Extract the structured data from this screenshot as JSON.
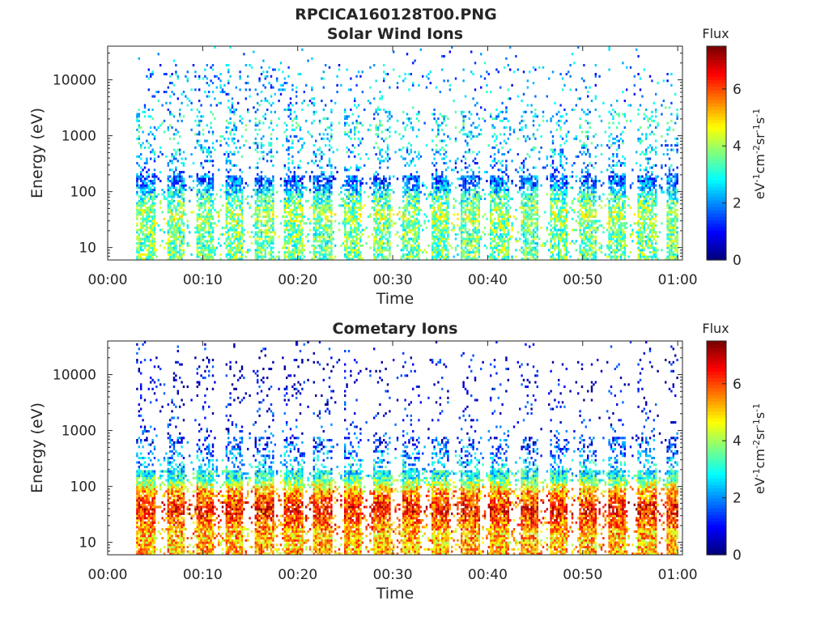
{
  "figure": {
    "filename_title": "RPCICA160128T00.PNG",
    "background": "#ffffff"
  },
  "colormap": [
    "#00007f",
    "#0000ff",
    "#007fff",
    "#00ffff",
    "#7fff7f",
    "#ffff00",
    "#ff7f00",
    "#ff0000",
    "#7f0000"
  ],
  "chart_data": [
    {
      "type": "heatmap",
      "title": "Solar Wind Ions",
      "xlabel": "Time",
      "ylabel": "Energy (eV)",
      "x_ticks": [
        "00:00",
        "00:10",
        "00:20",
        "00:30",
        "00:40",
        "00:50",
        "01:00"
      ],
      "xlim_minutes": [
        0,
        60.5
      ],
      "y_scale": "log",
      "y_ticks": [
        10,
        100,
        1000,
        10000
      ],
      "y_tick_labels": [
        "10",
        "100",
        "1000",
        "10000"
      ],
      "ylim": [
        6,
        40000
      ],
      "data_start_minute": 3,
      "colorbar": {
        "title": "Flux",
        "unit_label": "eV-1cm-2sr-1s-1",
        "ticks": [
          0,
          2,
          4,
          6
        ],
        "tick_labels": [
          "0",
          "2",
          "4",
          "6"
        ],
        "range": [
          0,
          7.5
        ]
      },
      "sweep_period_minutes": 3.1,
      "flux_profile": {
        "energy_bands": [
          {
            "energy": 20,
            "flux": 3.6
          },
          {
            "energy": 40,
            "flux": 4.0
          },
          {
            "energy": 80,
            "flux": 3.2
          },
          {
            "energy": 150,
            "flux": 1.6
          },
          {
            "energy": 500,
            "flux": 2.4
          },
          {
            "energy": 1500,
            "flux": 2.8
          },
          {
            "energy": 5000,
            "flux": 2.0
          },
          {
            "energy": 15000,
            "flux": 2.0
          }
        ],
        "peak_flux": 4.8
      }
    },
    {
      "type": "heatmap",
      "title": "Cometary Ions",
      "xlabel": "Time",
      "ylabel": "Energy (eV)",
      "x_ticks": [
        "00:00",
        "00:10",
        "00:20",
        "00:30",
        "00:40",
        "00:50",
        "01:00"
      ],
      "xlim_minutes": [
        0,
        60.5
      ],
      "y_scale": "log",
      "y_ticks": [
        10,
        100,
        1000,
        10000
      ],
      "y_tick_labels": [
        "10",
        "100",
        "1000",
        "10000"
      ],
      "ylim": [
        6,
        40000
      ],
      "data_start_minute": 3,
      "colorbar": {
        "title": "Flux",
        "unit_label": "eV-1cm-2sr-1s-1",
        "ticks": [
          0,
          2,
          4,
          6
        ],
        "tick_labels": [
          "0",
          "2",
          "4",
          "6"
        ],
        "range": [
          0,
          7.5
        ]
      },
      "sweep_period_minutes": 3.1,
      "flux_profile": {
        "energy_bands": [
          {
            "energy": 15,
            "flux": 5.2
          },
          {
            "energy": 40,
            "flux": 6.5
          },
          {
            "energy": 80,
            "flux": 5.4
          },
          {
            "energy": 150,
            "flux": 3.0
          },
          {
            "energy": 500,
            "flux": 1.5
          },
          {
            "energy": 2000,
            "flux": 0.8
          },
          {
            "energy": 10000,
            "flux": 0.6
          }
        ],
        "peak_flux": 7.0
      }
    }
  ]
}
